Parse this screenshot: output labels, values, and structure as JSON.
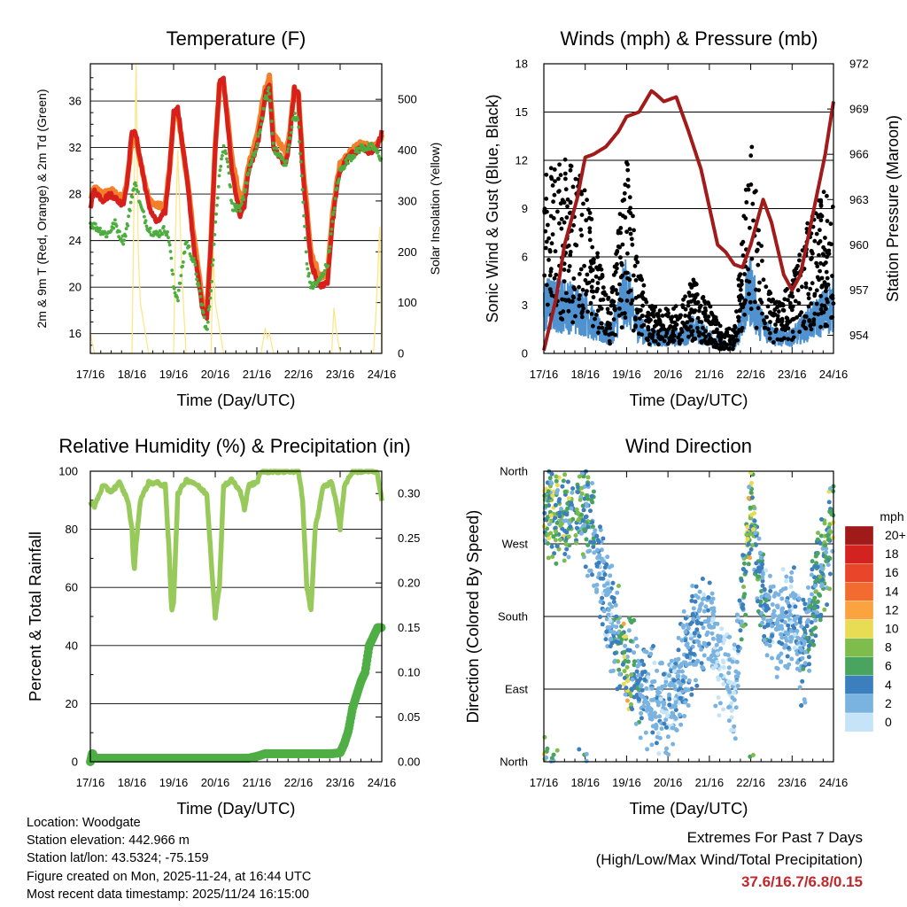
{
  "colors": {
    "temp_2m": "#d7201c",
    "temp_9m": "#f47f2a",
    "dewpoint": "#4dad3e",
    "solar": "#fde68a",
    "pressure": "#a21b1b",
    "gust": "#000000",
    "sonic": "#4f92cf",
    "rh": "#98c95b",
    "precip": "#4fae45"
  },
  "chart_data": [
    {
      "id": "temperature",
      "type": "line",
      "title": "Temperature (F)",
      "xlabel": "Time (Day/UTC)",
      "ylabel": "2m & 9m T (Red, Orange) & 2m Td (Green)",
      "y2label": "Solar Insolation (Yellow)",
      "xticks": [
        "17/16",
        "18/16",
        "19/16",
        "20/16",
        "21/16",
        "22/16",
        "23/16",
        "24/16"
      ],
      "xlim": [
        0,
        7
      ],
      "ylim": [
        14.3,
        39.2
      ],
      "y2lim": [
        0,
        570
      ],
      "yticks": [
        16,
        20,
        24,
        28,
        32,
        36
      ],
      "y2ticks": [
        0,
        100,
        200,
        300,
        400,
        500
      ],
      "series": [
        {
          "name": "2m T",
          "x": [
            0,
            0.1,
            0.3,
            0.5,
            0.7,
            0.8,
            0.9,
            1.0,
            1.1,
            1.2,
            1.4,
            1.6,
            1.8,
            1.9,
            2.0,
            2.1,
            2.3,
            2.5,
            2.7,
            2.8,
            2.9,
            3.0,
            3.1,
            3.2,
            3.4,
            3.6,
            3.7,
            3.8,
            4.0,
            4.1,
            4.2,
            4.3,
            4.4,
            4.6,
            4.7,
            4.8,
            4.9,
            5.0,
            5.1,
            5.3,
            5.5,
            5.7,
            5.8,
            5.9,
            6.0,
            6.2,
            6.5,
            6.8,
            6.9,
            7.0
          ],
          "values": [
            27,
            28.3,
            27.5,
            28,
            27.3,
            27.2,
            29.5,
            33.5,
            33,
            31,
            27,
            25.5,
            26.5,
            30,
            35,
            35.3,
            30,
            23,
            18,
            17.5,
            24,
            32,
            37.5,
            37.8,
            30,
            26,
            27,
            30,
            32,
            34,
            36.5,
            37.5,
            32,
            31,
            30.5,
            33,
            37,
            36.5,
            30,
            22,
            20,
            20.5,
            25,
            28,
            30,
            31.2,
            32,
            31.5,
            32,
            33.5
          ]
        },
        {
          "name": "9m T",
          "x": [
            0,
            0.1,
            0.3,
            0.5,
            0.7,
            0.8,
            0.9,
            1.0,
            1.1,
            1.2,
            1.4,
            1.6,
            1.8,
            1.9,
            2.0,
            2.1,
            2.3,
            2.5,
            2.7,
            2.8,
            2.9,
            3.0,
            3.1,
            3.2,
            3.4,
            3.6,
            3.7,
            3.8,
            4.0,
            4.1,
            4.2,
            4.3,
            4.4,
            4.6,
            4.7,
            4.8,
            4.9,
            5.0,
            5.1,
            5.3,
            5.5,
            5.7,
            5.8,
            5.9,
            6.0,
            6.2,
            6.5,
            6.8,
            6.9,
            7.0
          ],
          "values": [
            27.5,
            28.5,
            28,
            28.3,
            27.8,
            27.5,
            29.5,
            33,
            32.5,
            31,
            27.5,
            27,
            27,
            30,
            34.5,
            35,
            30,
            24,
            18.5,
            18,
            24,
            32,
            37.3,
            37.8,
            31,
            27.5,
            28,
            30.5,
            33,
            35,
            37,
            38,
            33,
            32,
            31.5,
            33.5,
            37,
            36.5,
            30.5,
            23,
            21,
            21,
            25.5,
            28.5,
            30.5,
            31.5,
            32.3,
            32,
            32.2,
            33
          ]
        },
        {
          "name": "2m Td",
          "x": [
            0,
            0.2,
            0.4,
            0.6,
            0.7,
            0.8,
            0.9,
            1.0,
            1.1,
            1.2,
            1.4,
            1.6,
            1.8,
            1.9,
            2.0,
            2.1,
            2.3,
            2.5,
            2.7,
            2.8,
            2.9,
            3.0,
            3.1,
            3.2,
            3.3,
            3.4,
            3.6,
            3.7,
            3.8,
            4.0,
            4.1,
            4.2,
            4.3,
            4.4,
            4.6,
            4.7,
            4.8,
            4.9,
            5.0,
            5.1,
            5.2,
            5.3,
            5.5,
            5.7,
            5.8,
            5.9,
            6.0,
            6.2,
            6.5,
            6.8,
            7.0
          ],
          "values": [
            25.5,
            25,
            24.5,
            25.5,
            24.5,
            24,
            25.5,
            28,
            29,
            27,
            25,
            24.5,
            25,
            24,
            20,
            19,
            24,
            22,
            18,
            16,
            20,
            25,
            30,
            32,
            31,
            27,
            26.5,
            28,
            30,
            32,
            34,
            36,
            37,
            32,
            31,
            30.5,
            33,
            35,
            34,
            28,
            22,
            20,
            20.5,
            22,
            25,
            28,
            30,
            31,
            32,
            32,
            31
          ]
        },
        {
          "name": "Solar Insolation",
          "x": [
            0,
            0.05,
            0.1,
            0.15,
            0.2,
            0.8,
            0.9,
            1.0,
            1.05,
            1.1,
            1.15,
            1.2,
            1.3,
            1.4,
            1.8,
            1.9,
            2.0,
            2.05,
            2.1,
            2.2,
            2.3,
            2.8,
            2.9,
            2.95,
            3.0,
            3.1,
            3.2,
            4.1,
            4.2,
            4.25,
            4.3,
            4.4,
            5.7,
            5.8,
            5.85,
            5.9,
            6.0,
            6.8,
            6.85,
            6.9,
            6.95,
            7.0
          ],
          "y2values": [
            40,
            20,
            0,
            0,
            0,
            0,
            0,
            0,
            300,
            570,
            200,
            100,
            50,
            0,
            0,
            0,
            0,
            250,
            400,
            150,
            0,
            0,
            0,
            200,
            100,
            50,
            0,
            0,
            50,
            30,
            40,
            0,
            0,
            0,
            90,
            50,
            0,
            0,
            60,
            150,
            250,
            0
          ]
        }
      ]
    },
    {
      "id": "winds",
      "type": "scatter",
      "title": "Winds (mph) & Pressure (mb)",
      "xlabel": "Time (Day/UTC)",
      "ylabel": "Sonic Wind & Gust (Blue, Black)",
      "y2label": "Station Pressure (Maroon)",
      "xticks": [
        "17/16",
        "18/16",
        "19/16",
        "20/16",
        "21/16",
        "22/16",
        "23/16",
        "24/16"
      ],
      "xlim": [
        0,
        7
      ],
      "ylim": [
        0,
        18
      ],
      "y2lim": [
        952.8,
        972
      ],
      "yticks": [
        0,
        3,
        6,
        9,
        12,
        15,
        18
      ],
      "y2ticks": [
        954,
        957,
        960,
        963,
        966,
        969,
        972
      ],
      "gust_profile": {
        "x": [
          0,
          0.5,
          1.0,
          1.3,
          1.6,
          2.0,
          2.2,
          2.5,
          3.0,
          3.3,
          3.6,
          4.0,
          4.3,
          4.6,
          5.0,
          5.2,
          5.6,
          6.0,
          6.5,
          7.0
        ],
        "values": [
          8,
          8,
          7,
          4,
          2,
          8,
          5,
          2,
          1.8,
          2,
          3,
          2,
          1,
          1,
          9,
          5,
          2,
          3,
          6,
          7
        ]
      },
      "sonic_profile": {
        "x": [
          0,
          0.5,
          1.0,
          1.3,
          1.6,
          2.0,
          2.2,
          2.5,
          3.0,
          3.3,
          3.6,
          4.0,
          4.3,
          4.6,
          5.0,
          5.2,
          5.6,
          6.0,
          6.5,
          7.0
        ],
        "values": [
          3,
          3,
          2.5,
          1.5,
          1,
          4,
          2,
          1,
          1,
          1,
          1.5,
          1,
          0.5,
          0.5,
          4,
          2,
          1,
          1,
          2,
          3
        ]
      },
      "series": [
        {
          "name": "Station Pressure",
          "x": [
            0,
            0.3,
            0.5,
            0.8,
            1.0,
            1.2,
            1.5,
            1.8,
            2.0,
            2.3,
            2.6,
            2.7,
            2.9,
            3.2,
            3.5,
            3.8,
            4.0,
            4.2,
            4.4,
            4.6,
            4.8,
            5.0,
            5.3,
            5.5,
            5.8,
            6.0,
            6.2,
            6.5,
            6.8,
            7.0
          ],
          "y2values": [
            953,
            956.5,
            960,
            963,
            965.8,
            966,
            966.5,
            967.5,
            968.5,
            968.8,
            970.2,
            970,
            969.5,
            969.8,
            967.5,
            965,
            962.5,
            960,
            959.5,
            958.7,
            958.5,
            960,
            963,
            961.5,
            958,
            957,
            958,
            962,
            966,
            969.5
          ]
        }
      ]
    },
    {
      "id": "humidity",
      "type": "line",
      "title": "Relative Humidity (%) & Precipitation (in)",
      "xlabel": "Time (Day/UTC)",
      "ylabel": "Percent & Total Rainfall",
      "xticks": [
        "17/16",
        "18/16",
        "19/16",
        "20/16",
        "21/16",
        "22/16",
        "23/16",
        "24/16"
      ],
      "xlim": [
        0,
        7
      ],
      "ylim": [
        0,
        100
      ],
      "y2lim": [
        0,
        0.325
      ],
      "yticks": [
        0,
        20,
        40,
        60,
        80,
        100
      ],
      "y2ticks": [
        "0.00",
        "0.05",
        "0.10",
        "0.15",
        "0.20",
        "0.25",
        "0.30"
      ],
      "series": [
        {
          "name": "Relative Humidity",
          "x": [
            0,
            0.1,
            0.3,
            0.5,
            0.7,
            0.8,
            0.9,
            1.0,
            1.05,
            1.1,
            1.2,
            1.4,
            1.6,
            1.8,
            1.9,
            1.95,
            2.0,
            2.1,
            2.3,
            2.5,
            2.8,
            2.9,
            3.0,
            3.1,
            3.2,
            3.4,
            3.6,
            3.7,
            3.8,
            4.0,
            4.1,
            4.2,
            4.4,
            4.6,
            4.8,
            5.0,
            5.1,
            5.2,
            5.3,
            5.4,
            5.6,
            5.8,
            5.9,
            6.0,
            6.1,
            6.3,
            6.5,
            6.8,
            6.9,
            7.0
          ],
          "values": [
            89,
            88,
            95,
            93,
            96,
            93,
            90,
            80,
            65,
            75,
            90,
            96,
            96,
            95,
            70,
            52,
            55,
            92,
            97,
            96,
            92,
            70,
            50,
            60,
            95,
            97,
            93,
            87,
            95,
            96,
            100,
            100,
            100,
            100,
            100,
            100,
            90,
            60,
            52,
            80,
            95,
            96,
            90,
            80,
            95,
            100,
            100,
            100,
            99,
            90
          ]
        },
        {
          "name": "Total Precipitation",
          "x": [
            0,
            0.05,
            0.1,
            0.3,
            1.0,
            2.0,
            3.0,
            3.8,
            4.0,
            4.2,
            4.5,
            5.0,
            5.5,
            5.8,
            6.0,
            6.1,
            6.2,
            6.3,
            6.5,
            6.6,
            6.7,
            6.8,
            6.9,
            7.0
          ],
          "y2values": [
            0,
            0.01,
            0.004,
            0.004,
            0.004,
            0.004,
            0.004,
            0.004,
            0.006,
            0.009,
            0.009,
            0.009,
            0.009,
            0.009,
            0.01,
            0.02,
            0.035,
            0.06,
            0.09,
            0.1,
            0.13,
            0.14,
            0.15,
            0.15
          ]
        }
      ]
    },
    {
      "id": "direction",
      "type": "scatter",
      "title": "Wind Direction",
      "xlabel": "Time (Day/UTC)",
      "ylabel": "Direction (Colored By Speed)",
      "xticks": [
        "17/16",
        "18/16",
        "19/16",
        "20/16",
        "21/16",
        "22/16",
        "23/16",
        "24/16"
      ],
      "xlim": [
        0,
        7
      ],
      "ylim": [
        0,
        360
      ],
      "yticks": [
        "North",
        "East",
        "South",
        "West",
        "North"
      ],
      "direction_profile": {
        "x": [
          0,
          0.5,
          1.0,
          1.3,
          1.6,
          2.0,
          2.5,
          3.0,
          3.3,
          3.6,
          4.0,
          4.3,
          4.6,
          5.0,
          5.3,
          5.6,
          6.0,
          6.3,
          6.5,
          7.0
        ],
        "values": [
          320,
          300,
          310,
          260,
          180,
          120,
          80,
          70,
          100,
          160,
          170,
          120,
          80,
          320,
          200,
          170,
          180,
          130,
          200,
          300
        ]
      },
      "legend": {
        "title": "mph",
        "position": "right",
        "labels": [
          "20+",
          "18",
          "16",
          "14",
          "12",
          "10",
          "8",
          "6",
          "4",
          "2",
          "0"
        ],
        "colors": [
          "#a01a1a",
          "#d32320",
          "#e8452a",
          "#f26b2f",
          "#fba43f",
          "#e8dc55",
          "#7ebd4c",
          "#49a45f",
          "#3b7fbe",
          "#7ab3e0",
          "#c5e4f7"
        ]
      }
    }
  ],
  "footer": {
    "location": "Location: Woodgate",
    "elevation": "Station elevation: 442.966 m",
    "latlon": "Station lat/lon: 43.5324; -75.159",
    "created": "Figure created on Mon, 2025-11-24, at 16:44 UTC",
    "recent": "Most recent data timestamp: 2025/11/24 16:15:00"
  },
  "extremes": {
    "title": "Extremes For Past 7 Days",
    "subtitle": "(High/Low/Max Wind/Total Precipitation)",
    "values": "37.6/16.7/6.8/0.15"
  }
}
